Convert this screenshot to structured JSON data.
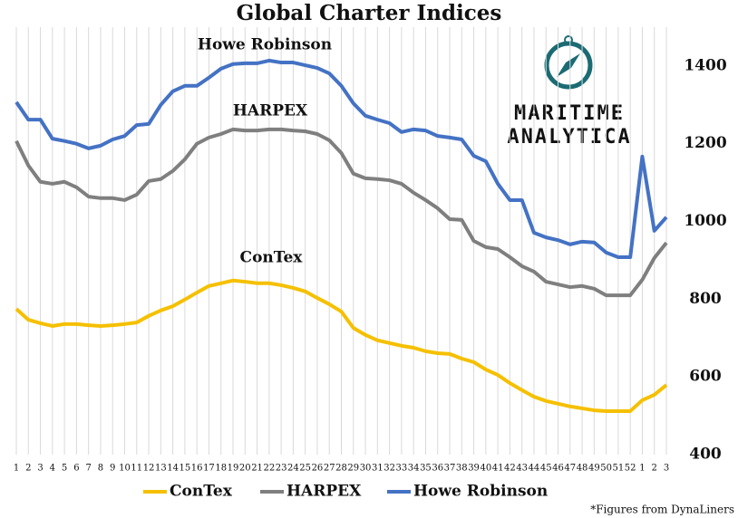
{
  "chart_data": {
    "type": "line",
    "title": "Global Charter Indices",
    "categories": [
      1,
      2,
      3,
      4,
      5,
      6,
      7,
      8,
      9,
      10,
      11,
      12,
      13,
      14,
      15,
      16,
      17,
      18,
      19,
      20,
      21,
      22,
      23,
      24,
      25,
      26,
      27,
      28,
      29,
      30,
      31,
      32,
      33,
      34,
      35,
      36,
      37,
      38,
      39,
      40,
      41,
      42,
      43,
      44,
      45,
      46,
      47,
      48,
      49,
      50,
      51,
      52,
      1,
      2,
      3
    ],
    "series": [
      {
        "name": "ConTex",
        "color": "#f5c000",
        "values": [
          775,
          747,
          738,
          731,
          736,
          736,
          733,
          731,
          733,
          736,
          740,
          757,
          771,
          782,
          799,
          817,
          834,
          841,
          848,
          845,
          841,
          841,
          836,
          829,
          820,
          803,
          787,
          768,
          726,
          708,
          694,
          687,
          680,
          675,
          666,
          661,
          659,
          647,
          638,
          619,
          605,
          584,
          566,
          549,
          538,
          531,
          524,
          519,
          514,
          512,
          512,
          512,
          540,
          554,
          579
        ]
      },
      {
        "name": "HARPEX",
        "color": "#7f7f7f",
        "values": [
          1207,
          1144,
          1102,
          1097,
          1102,
          1088,
          1064,
          1060,
          1060,
          1055,
          1069,
          1104,
          1109,
          1130,
          1160,
          1200,
          1216,
          1225,
          1237,
          1234,
          1234,
          1237,
          1237,
          1234,
          1232,
          1225,
          1209,
          1176,
          1123,
          1111,
          1109,
          1106,
          1097,
          1074,
          1055,
          1034,
          1006,
          1004,
          950,
          934,
          929,
          908,
          885,
          871,
          845,
          838,
          831,
          834,
          827,
          810,
          810,
          810,
          850,
          906,
          945
        ]
      },
      {
        "name": "Howe Robinson",
        "color": "#4472c4",
        "values": [
          1307,
          1262,
          1262,
          1213,
          1207,
          1200,
          1188,
          1195,
          1211,
          1220,
          1248,
          1251,
          1300,
          1335,
          1349,
          1349,
          1370,
          1393,
          1405,
          1407,
          1407,
          1414,
          1409,
          1409,
          1402,
          1395,
          1381,
          1349,
          1304,
          1272,
          1262,
          1253,
          1230,
          1237,
          1234,
          1220,
          1216,
          1211,
          1169,
          1155,
          1097,
          1055,
          1055,
          971,
          959,
          952,
          941,
          948,
          946,
          920,
          908,
          908,
          1167,
          976,
          1011
        ]
      }
    ],
    "ylim": [
      400,
      1500
    ],
    "yticks": [
      400,
      600,
      800,
      1000,
      1200,
      1400
    ],
    "y_axis_side": "right",
    "grid": "vertical",
    "logo": [
      "MARITIME",
      "ANALYTICA"
    ],
    "footnote": "*Figures from DynaLiners"
  }
}
